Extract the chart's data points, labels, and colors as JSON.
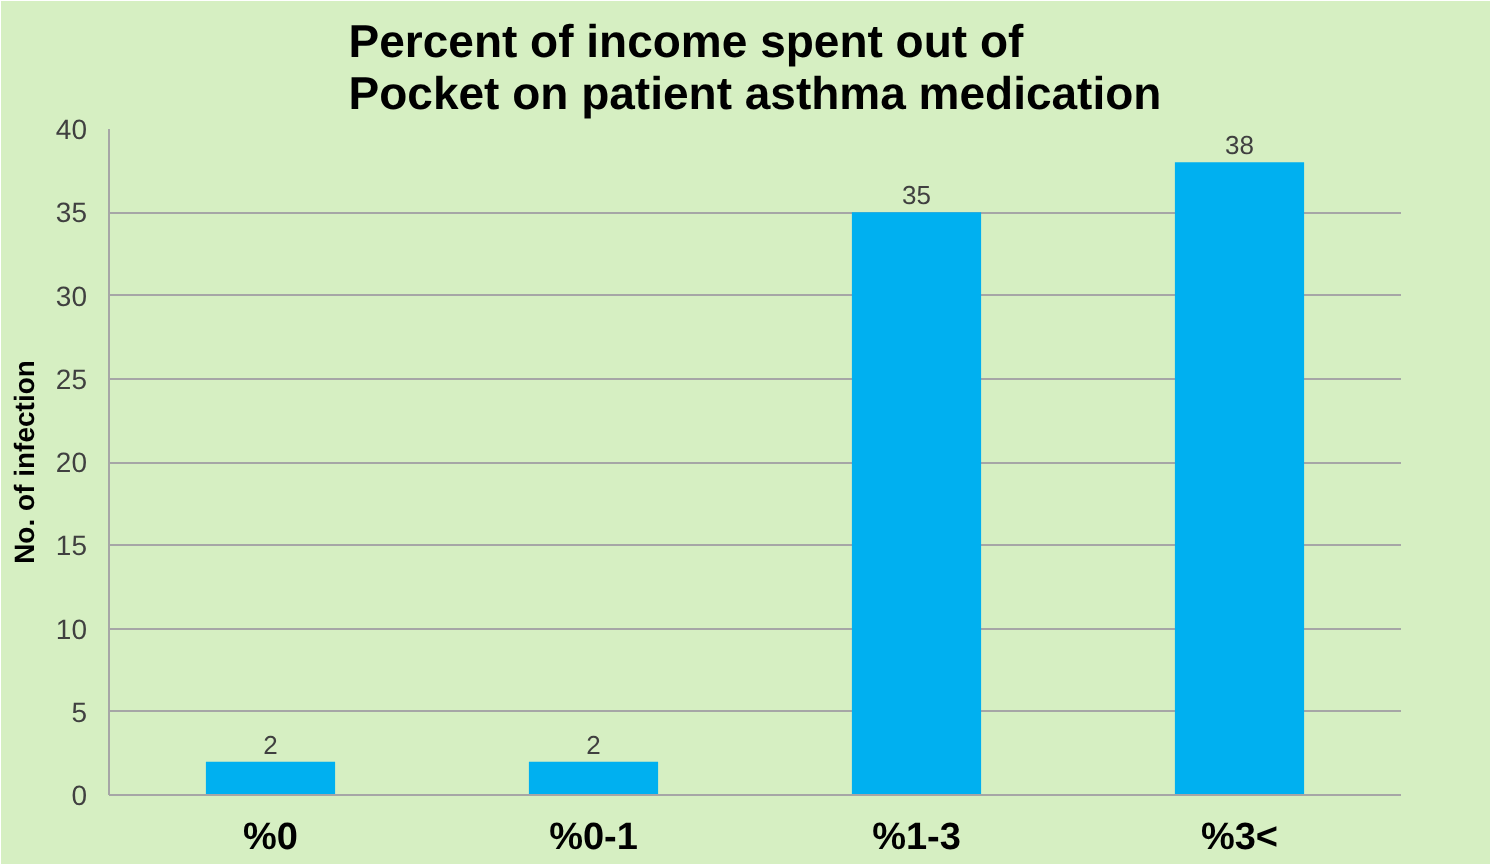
{
  "chart_data": {
    "type": "bar",
    "title": "Percent of income spent out of\nPocket on patient asthma medication",
    "ylabel": "No. of infection",
    "categories": [
      "%0",
      "%0-1",
      "%1-3",
      "%3<"
    ],
    "values": [
      2,
      2,
      35,
      38
    ],
    "color": "#00b0f0",
    "ylim": [
      0,
      40
    ],
    "yticks": [
      0,
      5,
      10,
      15,
      20,
      25,
      30,
      35,
      40
    ],
    "grid": "y",
    "data_labels": true
  }
}
